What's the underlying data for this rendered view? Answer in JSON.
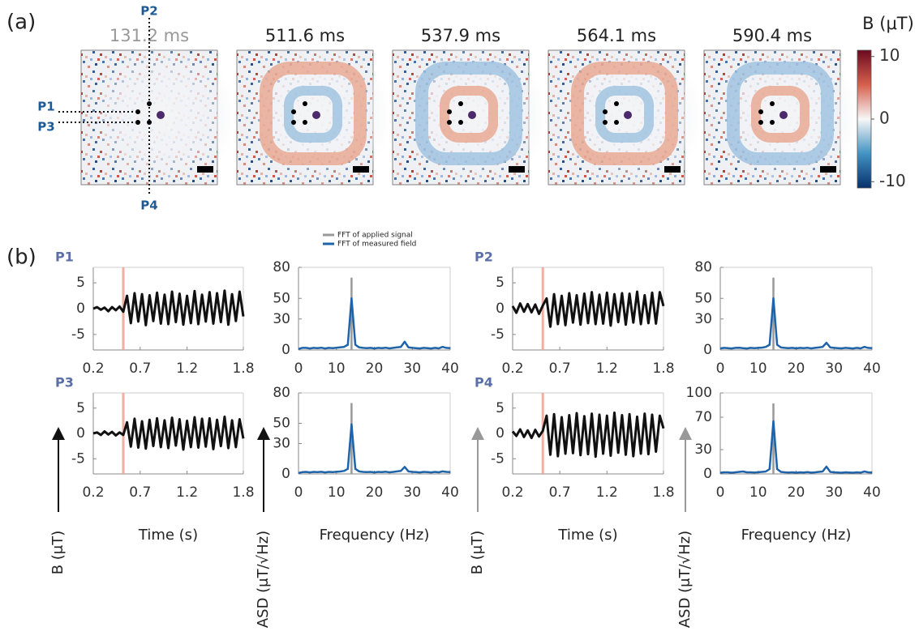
{
  "panel_a": {
    "label": "(a)",
    "frames": [
      "131.2 ms",
      "511.6 ms",
      "537.9 ms",
      "564.1 ms",
      "590.4 ms"
    ],
    "points": [
      "P1",
      "P2",
      "P3",
      "P4"
    ],
    "colorbar": {
      "label": "B (μT)",
      "clim": [
        -11,
        11
      ],
      "ticks": [
        10,
        0,
        -10
      ]
    }
  },
  "panel_b": {
    "label": "(b)"
  },
  "chart_data": [
    {
      "type": "line",
      "title": "P1",
      "xlim": [
        0.2,
        1.8
      ],
      "xticks": [
        0.2,
        0.7,
        1.2,
        1.8
      ],
      "ylim": [
        -8,
        8
      ],
      "yticks": [
        -5,
        0,
        5
      ],
      "highlight_x": 0.52,
      "x": [
        0.2,
        0.24,
        0.28,
        0.32,
        0.36,
        0.4,
        0.44,
        0.48,
        0.52,
        0.56,
        0.6,
        0.64,
        0.68,
        0.72,
        0.76,
        0.8,
        0.84,
        0.88,
        0.92,
        0.96,
        1.0,
        1.04,
        1.08,
        1.12,
        1.16,
        1.2,
        1.24,
        1.28,
        1.32,
        1.36,
        1.4,
        1.44,
        1.48,
        1.52,
        1.56,
        1.6,
        1.64,
        1.68,
        1.72,
        1.76,
        1.8
      ],
      "series": [
        {
          "color": "#111111",
          "values": [
            0,
            0.3,
            -0.2,
            0.2,
            -0.5,
            0.3,
            -0.3,
            0.4,
            -0.6,
            2.5,
            -2.8,
            3,
            -2.5,
            2.8,
            -3.2,
            2.6,
            -2.4,
            3.1,
            -2.9,
            2.7,
            -3,
            3.3,
            -2.6,
            2.9,
            -3.1,
            2.5,
            -2.8,
            3.4,
            -3,
            2.7,
            -2.5,
            3.2,
            -2.9,
            3,
            -2.6,
            3.5,
            -3.1,
            2.8,
            -2.4,
            3.3,
            -1.5
          ]
        }
      ]
    },
    {
      "type": "line",
      "xlim": [
        0,
        40
      ],
      "xticks": [
        0,
        10,
        20,
        30,
        40
      ],
      "ylim": [
        0,
        80
      ],
      "yticks": [
        0,
        30,
        50,
        80
      ],
      "legend": "top",
      "x": [
        0,
        1,
        2,
        3,
        4,
        5,
        6,
        7,
        8,
        9,
        10,
        11,
        12,
        13,
        14,
        15,
        16,
        17,
        18,
        19,
        20,
        21,
        22,
        23,
        24,
        25,
        26,
        27,
        28,
        29,
        30,
        31,
        32,
        33,
        34,
        35,
        36,
        37,
        38,
        39,
        40
      ],
      "series": [
        {
          "name": "FFT of applied signal",
          "color": "#999999",
          "x": [
            14,
            14
          ],
          "values": [
            0,
            70
          ]
        },
        {
          "name": "FFT of measured field",
          "color": "#1f63a8",
          "values": [
            1,
            2,
            2,
            1.5,
            2,
            1.8,
            2.2,
            1.5,
            2,
            1.8,
            2.1,
            2.5,
            3,
            5,
            50,
            5,
            2.5,
            2,
            1.8,
            2,
            1.5,
            2,
            1.8,
            2.2,
            1.6,
            2,
            2.5,
            3,
            8,
            2.5,
            2,
            1.8,
            1.5,
            2,
            1.8,
            1.5,
            2,
            1.6,
            3,
            2,
            1.8
          ]
        }
      ]
    },
    {
      "type": "line",
      "title": "P2",
      "xlim": [
        0.2,
        1.8
      ],
      "xticks": [
        0.2,
        0.7,
        1.2,
        1.8
      ],
      "ylim": [
        -8,
        8
      ],
      "yticks": [
        -5,
        0,
        5
      ],
      "highlight_x": 0.52,
      "x": [
        0.2,
        0.24,
        0.28,
        0.32,
        0.36,
        0.4,
        0.44,
        0.48,
        0.52,
        0.56,
        0.6,
        0.64,
        0.68,
        0.72,
        0.76,
        0.8,
        0.84,
        0.88,
        0.92,
        0.96,
        1.0,
        1.04,
        1.08,
        1.12,
        1.16,
        1.2,
        1.24,
        1.28,
        1.32,
        1.36,
        1.4,
        1.44,
        1.48,
        1.52,
        1.56,
        1.6,
        1.64,
        1.68,
        1.72,
        1.76,
        1.8
      ],
      "series": [
        {
          "color": "#111111",
          "values": [
            0.5,
            -0.8,
            1,
            -0.6,
            0.9,
            -0.7,
            0.8,
            -1,
            0.6,
            2,
            -3.5,
            2.8,
            -3,
            2.5,
            -3.2,
            3,
            -2.7,
            2.6,
            -3.1,
            2.9,
            -2.8,
            3.2,
            -3,
            2.7,
            -2.9,
            3.1,
            -3.3,
            2.8,
            -2.6,
            3,
            -3.1,
            2.9,
            -2.7,
            3.3,
            -3,
            2.6,
            -2.8,
            3.1,
            -2.9,
            3.2,
            0.5
          ]
        }
      ]
    },
    {
      "type": "line",
      "xlim": [
        0,
        40
      ],
      "xticks": [
        0,
        10,
        20,
        30,
        40
      ],
      "ylim": [
        0,
        80
      ],
      "yticks": [
        0,
        30,
        50,
        80
      ],
      "x": [
        0,
        1,
        2,
        3,
        4,
        5,
        6,
        7,
        8,
        9,
        10,
        11,
        12,
        13,
        14,
        15,
        16,
        17,
        18,
        19,
        20,
        21,
        22,
        23,
        24,
        25,
        26,
        27,
        28,
        29,
        30,
        31,
        32,
        33,
        34,
        35,
        36,
        37,
        38,
        39,
        40
      ],
      "series": [
        {
          "color": "#999999",
          "x": [
            14,
            14
          ],
          "values": [
            0,
            70
          ]
        },
        {
          "color": "#1f63a8",
          "values": [
            1.5,
            2,
            1.8,
            1.5,
            2,
            2.2,
            1.8,
            1.5,
            2,
            1.8,
            2,
            2.3,
            3,
            5,
            50,
            5,
            2.4,
            2,
            1.7,
            2,
            1.6,
            2,
            1.8,
            2.1,
            1.6,
            2,
            2.4,
            3,
            7,
            2.4,
            2,
            1.8,
            1.6,
            2,
            1.8,
            1.5,
            2,
            1.6,
            3,
            2,
            1.8
          ]
        }
      ]
    },
    {
      "type": "line",
      "title": "P3",
      "xlim": [
        0.2,
        1.8
      ],
      "xticks": [
        0.2,
        0.7,
        1.2,
        1.8
      ],
      "ylim": [
        -8,
        8
      ],
      "yticks": [
        -5,
        0,
        5
      ],
      "highlight_x": 0.52,
      "xlabel": "Time (s)",
      "ylabel": "B (μT)",
      "x": [
        0.2,
        0.24,
        0.28,
        0.32,
        0.36,
        0.4,
        0.44,
        0.48,
        0.52,
        0.56,
        0.6,
        0.64,
        0.68,
        0.72,
        0.76,
        0.8,
        0.84,
        0.88,
        0.92,
        0.96,
        1.0,
        1.04,
        1.08,
        1.12,
        1.16,
        1.2,
        1.24,
        1.28,
        1.32,
        1.36,
        1.4,
        1.44,
        1.48,
        1.52,
        1.56,
        1.6,
        1.64,
        1.68,
        1.72,
        1.76,
        1.8
      ],
      "series": [
        {
          "color": "#111111",
          "values": [
            0,
            0.2,
            -0.3,
            0.4,
            -0.2,
            0.3,
            -0.4,
            0.2,
            -0.3,
            2.2,
            -2.6,
            2.9,
            -2.8,
            2.4,
            -3,
            2.7,
            -2.5,
            3,
            -2.7,
            2.6,
            -2.9,
            3.1,
            -2.4,
            2.8,
            -3.2,
            2.5,
            -2.7,
            3.2,
            -2.8,
            2.9,
            -2.6,
            3,
            -3.1,
            2.7,
            -2.5,
            3.3,
            -2.9,
            2.6,
            -2.7,
            2.8,
            -1
          ]
        }
      ]
    },
    {
      "type": "line",
      "xlim": [
        0,
        40
      ],
      "xticks": [
        0,
        10,
        20,
        30,
        40
      ],
      "ylim": [
        0,
        80
      ],
      "yticks": [
        0,
        30,
        50,
        80
      ],
      "xlabel": "Frequency (Hz)",
      "ylabel": "ASD (μT/√Hz)",
      "x": [
        0,
        1,
        2,
        3,
        4,
        5,
        6,
        7,
        8,
        9,
        10,
        11,
        12,
        13,
        14,
        15,
        16,
        17,
        18,
        19,
        20,
        21,
        22,
        23,
        24,
        25,
        26,
        27,
        28,
        29,
        30,
        31,
        32,
        33,
        34,
        35,
        36,
        37,
        38,
        39,
        40
      ],
      "series": [
        {
          "color": "#999999",
          "x": [
            14,
            14
          ],
          "values": [
            0,
            70
          ]
        },
        {
          "color": "#1f63a8",
          "values": [
            1,
            1.8,
            2,
            1.5,
            2,
            1.8,
            2.1,
            1.5,
            2,
            1.8,
            2.1,
            2.4,
            3,
            5,
            49,
            5,
            2.5,
            2,
            1.8,
            2,
            1.5,
            2,
            1.8,
            2.2,
            1.6,
            2,
            2.5,
            3,
            7,
            2.5,
            2,
            1.8,
            1.5,
            2,
            1.8,
            1.5,
            2,
            1.6,
            2.5,
            2,
            1.8
          ]
        }
      ]
    },
    {
      "type": "line",
      "title": "P4",
      "xlim": [
        0.2,
        1.8
      ],
      "xticks": [
        0.2,
        0.7,
        1.2,
        1.8
      ],
      "ylim": [
        -8,
        8
      ],
      "yticks": [
        -5,
        0,
        5
      ],
      "highlight_x": 0.52,
      "xlabel": "Time (s)",
      "ylabel": "B (μT)",
      "x": [
        0.2,
        0.24,
        0.28,
        0.32,
        0.36,
        0.4,
        0.44,
        0.48,
        0.52,
        0.56,
        0.6,
        0.64,
        0.68,
        0.72,
        0.76,
        0.8,
        0.84,
        0.88,
        0.92,
        0.96,
        1.0,
        1.04,
        1.08,
        1.12,
        1.16,
        1.2,
        1.24,
        1.28,
        1.32,
        1.36,
        1.4,
        1.44,
        1.48,
        1.52,
        1.56,
        1.6,
        1.64,
        1.68,
        1.72,
        1.76,
        1.8
      ],
      "series": [
        {
          "color": "#111111",
          "values": [
            0.4,
            -0.5,
            0.8,
            -0.7,
            0.6,
            -0.9,
            0.7,
            -0.6,
            0.5,
            3.5,
            -4.2,
            3.8,
            -4.5,
            3.2,
            -4,
            3.6,
            -3.9,
            4,
            -4.3,
            3.4,
            -4.1,
            3.9,
            -4.6,
            3.7,
            -4,
            3.5,
            -4.4,
            4.1,
            -3.8,
            3.6,
            -4.2,
            3.8,
            -4.5,
            3.3,
            -4,
            3.9,
            -4.1,
            3.7,
            -3.6,
            3.5,
            1
          ]
        }
      ]
    },
    {
      "type": "line",
      "xlim": [
        0,
        40
      ],
      "xticks": [
        0,
        10,
        20,
        30,
        40
      ],
      "ylim": [
        0,
        100
      ],
      "yticks": [
        0,
        30,
        70,
        100
      ],
      "xlabel": "Frequency (Hz)",
      "ylabel": "ASD (μT/√Hz)",
      "x": [
        0,
        1,
        2,
        3,
        4,
        5,
        6,
        7,
        8,
        9,
        10,
        11,
        12,
        13,
        14,
        15,
        16,
        17,
        18,
        19,
        20,
        21,
        22,
        23,
        24,
        25,
        26,
        27,
        28,
        29,
        30,
        31,
        32,
        33,
        34,
        35,
        36,
        37,
        38,
        39,
        40
      ],
      "series": [
        {
          "color": "#999999",
          "x": [
            14,
            14
          ],
          "values": [
            0,
            87
          ]
        },
        {
          "color": "#1f63a8",
          "values": [
            1.5,
            2,
            2,
            1.5,
            2,
            2.5,
            3,
            2,
            2,
            1.8,
            2.1,
            2.5,
            3,
            6,
            65,
            6,
            2.5,
            2,
            1.8,
            2,
            1.5,
            2,
            1.8,
            2.2,
            1.6,
            2,
            2.5,
            3,
            9,
            2.5,
            2,
            1.8,
            1.5,
            2,
            1.8,
            1.5,
            2,
            1.6,
            3,
            2,
            1.8
          ]
        }
      ]
    }
  ]
}
